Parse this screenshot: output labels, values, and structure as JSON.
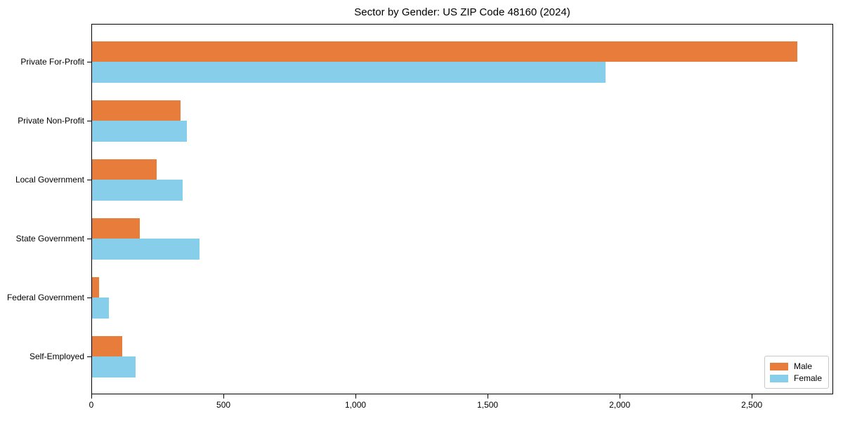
{
  "chart_data": {
    "type": "bar",
    "orientation": "horizontal",
    "title": "Sector by Gender: US ZIP Code 48160 (2024)",
    "xlabel": "",
    "ylabel": "",
    "categories": [
      "Private For-Profit",
      "Private Non-Profit",
      "Local Government",
      "State Government",
      "Federal Government",
      "Self-Employed"
    ],
    "series": [
      {
        "name": "Male",
        "color": "#e87d3b",
        "values": [
          2670,
          335,
          244,
          180,
          27,
          114
        ]
      },
      {
        "name": "Female",
        "color": "#87ceeb",
        "values": [
          1945,
          358,
          344,
          406,
          65,
          164
        ]
      }
    ],
    "xlim": [
      0,
      2808
    ],
    "xticks": [
      0,
      500,
      1000,
      1500,
      2000,
      2500
    ],
    "xtick_labels": [
      "0",
      "500",
      "1,000",
      "1,500",
      "2,000",
      "2,500"
    ],
    "grid": false,
    "legend": {
      "position": "lower right",
      "entries": [
        "Male",
        "Female"
      ]
    }
  }
}
